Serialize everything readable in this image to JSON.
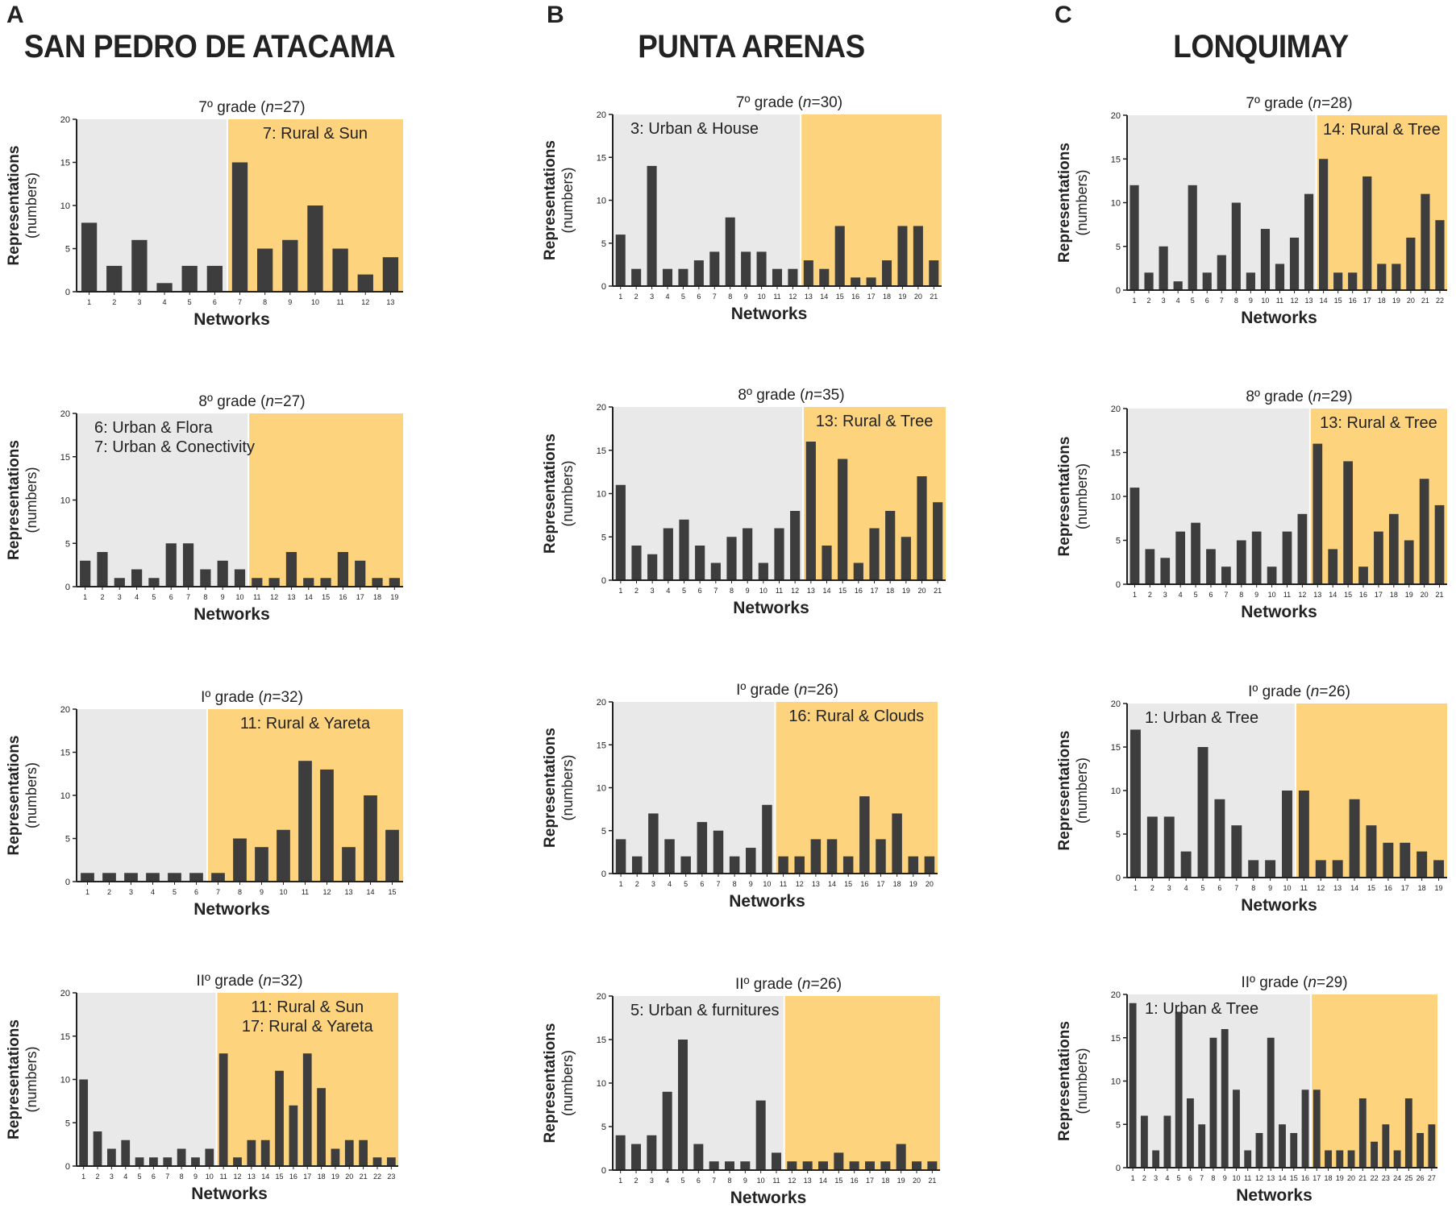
{
  "panels": [
    {
      "letter": "A",
      "region": "SAN PEDRO DE ATACAMA"
    },
    {
      "letter": "B",
      "region": "PUNTA ARENAS"
    },
    {
      "letter": "C",
      "region": "LONQUIMAY"
    }
  ],
  "colors": {
    "bar": "#3d3d3d",
    "urban_bg": "#e9e9e9",
    "rural_bg": "#fdd37e",
    "axis": "#222222"
  },
  "chart_data": [
    {
      "type": "bar",
      "panel": "A",
      "grade": "7º grade",
      "n": "27",
      "split_after": 6,
      "annotations": [
        "7: Rural & Sun"
      ],
      "annotation_side": "right",
      "categories": [
        "1",
        "2",
        "3",
        "4",
        "5",
        "6",
        "7",
        "8",
        "9",
        "10",
        "11",
        "12",
        "13"
      ],
      "values": [
        8,
        3,
        6,
        1,
        3,
        3,
        15,
        5,
        6,
        10,
        5,
        2,
        4
      ],
      "xlabel": "Networks",
      "ylabel": "Representations",
      "ylabel2": "(numbers)",
      "ylim": [
        0,
        20
      ],
      "yticks": [
        0,
        5,
        10,
        15,
        20
      ]
    },
    {
      "type": "bar",
      "panel": "A",
      "grade": "8º grade",
      "n": "27",
      "split_after": 10,
      "annotations": [
        "6: Urban & Flora",
        "7: Urban & Conectivity"
      ],
      "annotation_side": "left",
      "categories": [
        "1",
        "2",
        "3",
        "4",
        "5",
        "6",
        "7",
        "8",
        "9",
        "10",
        "11",
        "12",
        "13",
        "14",
        "15",
        "16",
        "17",
        "18",
        "19"
      ],
      "values": [
        3,
        4,
        1,
        2,
        1,
        5,
        5,
        2,
        3,
        2,
        1,
        1,
        4,
        1,
        1,
        4,
        3,
        1,
        1
      ],
      "xlabel": "Networks",
      "ylabel": "Representations",
      "ylabel2": "(numbers)",
      "ylim": [
        0,
        20
      ],
      "yticks": [
        0,
        5,
        10,
        15,
        20
      ]
    },
    {
      "type": "bar",
      "panel": "A",
      "grade": "Iº grade",
      "n": "32",
      "split_after": 6,
      "annotations": [
        "11: Rural & Yareta"
      ],
      "annotation_side": "right",
      "categories": [
        "1",
        "2",
        "3",
        "4",
        "5",
        "6",
        "7",
        "8",
        "9",
        "10",
        "11",
        "12",
        "13",
        "14",
        "15"
      ],
      "values": [
        1,
        1,
        1,
        1,
        1,
        1,
        1,
        5,
        4,
        6,
        14,
        13,
        4,
        10,
        6
      ],
      "xlabel": "Networks",
      "ylabel": "Representations",
      "ylabel2": "(numbers)",
      "ylim": [
        0,
        20
      ],
      "yticks": [
        0,
        5,
        10,
        15,
        20
      ]
    },
    {
      "type": "bar",
      "panel": "A",
      "grade": "IIº grade",
      "n": "32",
      "split_after": 10,
      "annotations": [
        "11: Rural & Sun",
        "17: Rural & Yareta"
      ],
      "annotation_side": "right",
      "categories": [
        "1",
        "2",
        "3",
        "4",
        "5",
        "6",
        "7",
        "8",
        "9",
        "10",
        "11",
        "12",
        "13",
        "14",
        "15",
        "16",
        "17",
        "18",
        "19",
        "20",
        "21",
        "22",
        "23"
      ],
      "values": [
        10,
        4,
        2,
        3,
        1,
        1,
        1,
        2,
        1,
        2,
        13,
        1,
        3,
        3,
        11,
        7,
        13,
        9,
        2,
        3,
        3,
        1,
        1
      ],
      "xlabel": "Networks",
      "ylabel": "Representations",
      "ylabel2": "(numbers)",
      "ylim": [
        0,
        20
      ],
      "yticks": [
        0,
        5,
        10,
        15,
        20
      ]
    },
    {
      "type": "bar",
      "panel": "B",
      "grade": "7º grade",
      "n": "30",
      "split_after": 12,
      "annotations": [
        "3: Urban & House"
      ],
      "annotation_side": "left",
      "categories": [
        "1",
        "2",
        "3",
        "4",
        "5",
        "6",
        "7",
        "8",
        "9",
        "10",
        "11",
        "12",
        "13",
        "14",
        "15",
        "16",
        "17",
        "18",
        "19",
        "20",
        "21"
      ],
      "values": [
        6,
        2,
        14,
        2,
        2,
        3,
        4,
        8,
        4,
        4,
        2,
        2,
        3,
        2,
        7,
        1,
        1,
        3,
        7,
        7,
        3
      ],
      "xlabel": "Networks",
      "ylabel": "Representations",
      "ylabel2": "(numbers)",
      "ylim": [
        0,
        20
      ],
      "yticks": [
        0,
        5,
        10,
        15,
        20
      ]
    },
    {
      "type": "bar",
      "panel": "B",
      "grade": "8º grade",
      "n": "35",
      "split_after": 12,
      "annotations": [
        "13: Rural & Tree"
      ],
      "annotation_side": "right",
      "categories": [
        "1",
        "2",
        "3",
        "4",
        "5",
        "6",
        "7",
        "8",
        "9",
        "10",
        "11",
        "12",
        "13",
        "14",
        "15",
        "16",
        "17",
        "18",
        "19",
        "20",
        "21"
      ],
      "values": [
        11,
        4,
        3,
        6,
        7,
        4,
        2,
        5,
        6,
        2,
        6,
        8,
        16,
        4,
        14,
        2,
        6,
        8,
        5,
        12,
        9
      ],
      "xlabel": "Networks",
      "ylabel": "Representations",
      "ylabel2": "(numbers)",
      "ylim": [
        0,
        20
      ],
      "yticks": [
        0,
        5,
        10,
        15,
        20
      ]
    },
    {
      "type": "bar",
      "panel": "B",
      "grade": "Iº grade",
      "n": "26",
      "split_after": 10,
      "annotations": [
        "16: Rural & Clouds"
      ],
      "annotation_side": "right",
      "categories": [
        "1",
        "2",
        "3",
        "4",
        "5",
        "6",
        "7",
        "8",
        "9",
        "10",
        "11",
        "12",
        "13",
        "14",
        "15",
        "16",
        "17",
        "18",
        "19",
        "20"
      ],
      "values": [
        4,
        2,
        7,
        4,
        2,
        6,
        5,
        2,
        3,
        8,
        2,
        2,
        4,
        4,
        2,
        9,
        4,
        7,
        2,
        2
      ],
      "xlabel": "Networks",
      "ylabel": "Representations",
      "ylabel2": "(numbers)",
      "ylim": [
        0,
        20
      ],
      "yticks": [
        0,
        5,
        10,
        15,
        20
      ]
    },
    {
      "type": "bar",
      "panel": "B",
      "grade": "IIº grade",
      "n": "26",
      "split_after": 11,
      "annotations": [
        "5: Urban & furnitures"
      ],
      "annotation_side": "left",
      "categories": [
        "1",
        "2",
        "3",
        "4",
        "5",
        "6",
        "7",
        "8",
        "9",
        "10",
        "11",
        "12",
        "13",
        "14",
        "15",
        "16",
        "17",
        "18",
        "19",
        "20",
        "21"
      ],
      "values": [
        4,
        3,
        4,
        9,
        15,
        3,
        1,
        1,
        1,
        8,
        2,
        1,
        1,
        1,
        2,
        1,
        1,
        1,
        3,
        1,
        1
      ],
      "xlabel": "Networks",
      "ylabel": "Representations",
      "ylabel2": "(numbers)",
      "ylim": [
        0,
        20
      ],
      "yticks": [
        0,
        5,
        10,
        15,
        20
      ]
    },
    {
      "type": "bar",
      "panel": "C",
      "grade": "7º grade",
      "n": "28",
      "split_after": 13,
      "annotations": [
        "14: Rural & Tree"
      ],
      "annotation_side": "right",
      "categories": [
        "1",
        "2",
        "3",
        "4",
        "5",
        "6",
        "7",
        "8",
        "9",
        "10",
        "11",
        "12",
        "13",
        "14",
        "15",
        "16",
        "17",
        "18",
        "19",
        "20",
        "21",
        "22"
      ],
      "values": [
        12,
        2,
        5,
        1,
        12,
        2,
        4,
        10,
        2,
        7,
        3,
        6,
        11,
        15,
        2,
        2,
        13,
        3,
        3,
        6,
        11,
        8
      ],
      "xlabel": "Networks",
      "ylabel": "Representations",
      "ylabel2": "(numbers)",
      "ylim": [
        0,
        20
      ],
      "yticks": [
        0,
        5,
        10,
        15,
        20
      ]
    },
    {
      "type": "bar",
      "panel": "C",
      "grade": "8º grade",
      "n": "29",
      "split_after": 12,
      "annotations": [
        "13: Rural & Tree"
      ],
      "annotation_side": "right",
      "categories": [
        "1",
        "2",
        "3",
        "4",
        "5",
        "6",
        "7",
        "8",
        "9",
        "10",
        "11",
        "12",
        "13",
        "14",
        "15",
        "16",
        "17",
        "18",
        "19",
        "20",
        "21"
      ],
      "values": [
        11,
        4,
        3,
        6,
        7,
        4,
        2,
        5,
        6,
        2,
        6,
        8,
        16,
        4,
        14,
        2,
        6,
        8,
        5,
        12,
        9
      ],
      "xlabel": "Networks",
      "ylabel": "Representations",
      "ylabel2": "(numbers)",
      "ylim": [
        0,
        20
      ],
      "yticks": [
        0,
        5,
        10,
        15,
        20
      ]
    },
    {
      "type": "bar",
      "panel": "C",
      "grade": "Iº grade",
      "n": "26",
      "split_after": 10,
      "annotations": [
        "1: Urban & Tree"
      ],
      "annotation_side": "left",
      "categories": [
        "1",
        "2",
        "3",
        "4",
        "5",
        "6",
        "7",
        "8",
        "9",
        "10",
        "11",
        "12",
        "13",
        "14",
        "15",
        "16",
        "17",
        "18",
        "19"
      ],
      "values": [
        17,
        7,
        7,
        3,
        15,
        9,
        6,
        2,
        2,
        10,
        10,
        2,
        2,
        9,
        6,
        4,
        4,
        3,
        2
      ],
      "xlabel": "Networks",
      "ylabel": "Representations",
      "ylabel2": "(numbers)",
      "ylim": [
        0,
        20
      ],
      "yticks": [
        0,
        5,
        10,
        15,
        20
      ]
    },
    {
      "type": "bar",
      "panel": "C",
      "grade": "IIº grade",
      "n": "29",
      "split_after": 16,
      "annotations": [
        "1: Urban & Tree"
      ],
      "annotation_side": "left",
      "categories": [
        "1",
        "2",
        "3",
        "4",
        "5",
        "6",
        "7",
        "8",
        "9",
        "10",
        "11",
        "12",
        "13",
        "14",
        "15",
        "16",
        "17",
        "18",
        "19",
        "20",
        "21",
        "22",
        "23",
        "24",
        "25",
        "26",
        "27"
      ],
      "values": [
        19,
        6,
        2,
        6,
        18,
        8,
        5,
        15,
        16,
        9,
        2,
        4,
        15,
        5,
        4,
        9,
        9,
        2,
        2,
        2,
        8,
        3,
        5,
        2,
        8,
        4,
        5
      ],
      "xlabel": "Networks",
      "ylabel": "Representations",
      "ylabel2": "(numbers)",
      "ylim": [
        0,
        20
      ],
      "yticks": [
        0,
        5,
        10,
        15,
        20
      ]
    }
  ]
}
